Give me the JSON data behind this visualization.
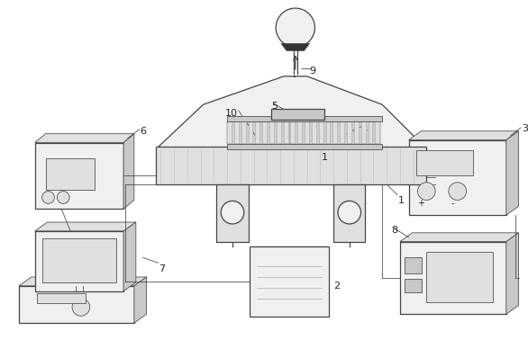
{
  "bg_color": "#ffffff",
  "lc": "#444444",
  "lc2": "#666666",
  "fill_light": "#f0f0f0",
  "fill_mid": "#e0e0e0",
  "fill_dark": "#c8c8c8",
  "fill_darker": "#aaaaaa",
  "fill_black": "#333333",
  "label_fs": 7.5,
  "lw_main": 0.9,
  "lw_thin": 0.55
}
